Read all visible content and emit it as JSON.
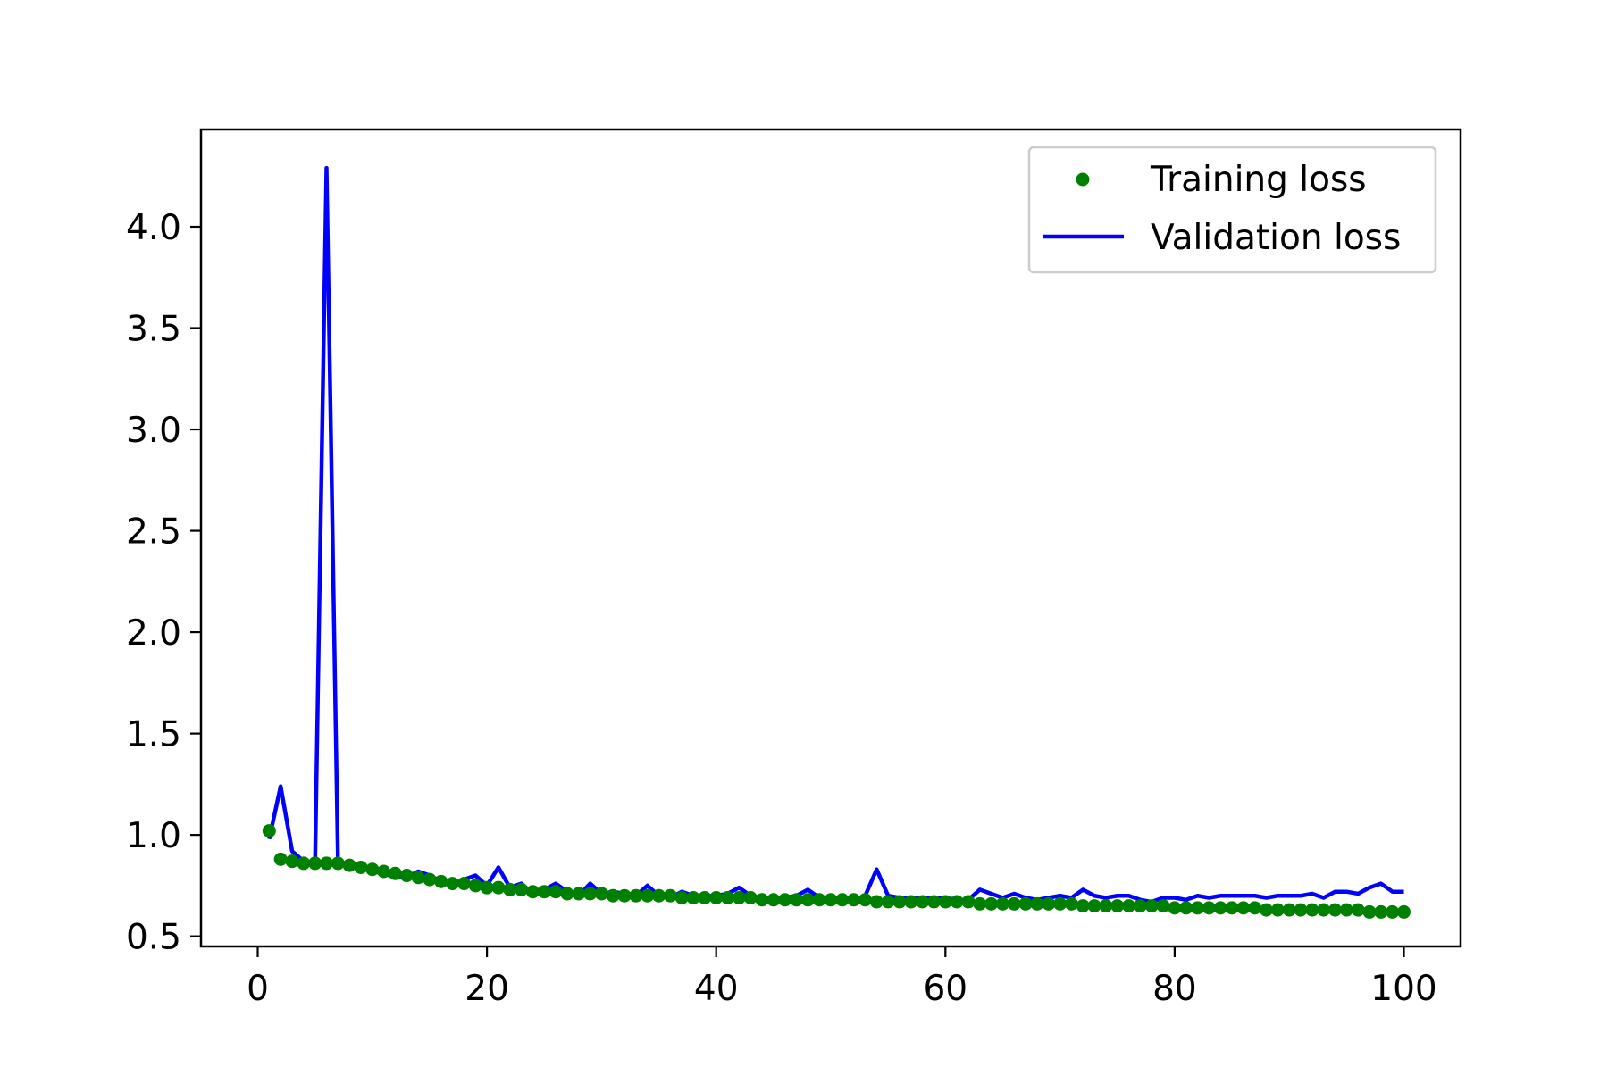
{
  "chart_data": {
    "type": "line",
    "title": "",
    "xlabel": "",
    "ylabel": "",
    "xlim": [
      -4.95,
      104.95
    ],
    "ylim": [
      0.45,
      4.48
    ],
    "xticks": [
      0,
      20,
      40,
      60,
      80,
      100
    ],
    "yticks": [
      0.5,
      1.0,
      1.5,
      2.0,
      2.5,
      3.0,
      3.5,
      4.0
    ],
    "xtick_labels": [
      "0",
      "20",
      "40",
      "60",
      "80",
      "100"
    ],
    "ytick_labels": [
      "0.5",
      "1.0",
      "1.5",
      "2.0",
      "2.5",
      "3.0",
      "3.5",
      "4.0"
    ],
    "grid": false,
    "legend_position": "top-right",
    "x": [
      1,
      2,
      3,
      4,
      5,
      6,
      7,
      8,
      9,
      10,
      11,
      12,
      13,
      14,
      15,
      16,
      17,
      18,
      19,
      20,
      21,
      22,
      23,
      24,
      25,
      26,
      27,
      28,
      29,
      30,
      31,
      32,
      33,
      34,
      35,
      36,
      37,
      38,
      39,
      40,
      41,
      42,
      43,
      44,
      45,
      46,
      47,
      48,
      49,
      50,
      51,
      52,
      53,
      54,
      55,
      56,
      57,
      58,
      59,
      60,
      61,
      62,
      63,
      64,
      65,
      66,
      67,
      68,
      69,
      70,
      71,
      72,
      73,
      74,
      75,
      76,
      77,
      78,
      79,
      80,
      81,
      82,
      83,
      84,
      85,
      86,
      87,
      88,
      89,
      90,
      91,
      92,
      93,
      94,
      95,
      96,
      97,
      98,
      99,
      100
    ],
    "series": [
      {
        "name": "Training loss",
        "style": "markers",
        "color": "#008000",
        "values": [
          1.02,
          0.88,
          0.87,
          0.86,
          0.86,
          0.86,
          0.86,
          0.85,
          0.84,
          0.83,
          0.82,
          0.81,
          0.8,
          0.79,
          0.78,
          0.77,
          0.76,
          0.76,
          0.75,
          0.74,
          0.74,
          0.73,
          0.73,
          0.72,
          0.72,
          0.72,
          0.71,
          0.71,
          0.71,
          0.71,
          0.7,
          0.7,
          0.7,
          0.7,
          0.7,
          0.7,
          0.69,
          0.69,
          0.69,
          0.69,
          0.69,
          0.69,
          0.69,
          0.68,
          0.68,
          0.68,
          0.68,
          0.68,
          0.68,
          0.68,
          0.68,
          0.68,
          0.68,
          0.67,
          0.67,
          0.67,
          0.67,
          0.67,
          0.67,
          0.67,
          0.67,
          0.67,
          0.66,
          0.66,
          0.66,
          0.66,
          0.66,
          0.66,
          0.66,
          0.66,
          0.66,
          0.65,
          0.65,
          0.65,
          0.65,
          0.65,
          0.65,
          0.65,
          0.65,
          0.64,
          0.64,
          0.64,
          0.64,
          0.64,
          0.64,
          0.64,
          0.64,
          0.63,
          0.63,
          0.63,
          0.63,
          0.63,
          0.63,
          0.63,
          0.63,
          0.63,
          0.62,
          0.62,
          0.62,
          0.62
        ]
      },
      {
        "name": "Validation loss",
        "style": "line",
        "color": "#0000ff",
        "values": [
          0.98,
          1.24,
          0.92,
          0.87,
          0.85,
          4.29,
          0.87,
          0.85,
          0.86,
          0.82,
          0.81,
          0.79,
          0.79,
          0.82,
          0.8,
          0.77,
          0.75,
          0.78,
          0.8,
          0.75,
          0.84,
          0.74,
          0.76,
          0.71,
          0.73,
          0.76,
          0.72,
          0.7,
          0.76,
          0.71,
          0.72,
          0.71,
          0.7,
          0.75,
          0.7,
          0.69,
          0.72,
          0.7,
          0.7,
          0.7,
          0.71,
          0.74,
          0.7,
          0.69,
          0.69,
          0.69,
          0.7,
          0.73,
          0.69,
          0.69,
          0.68,
          0.68,
          0.7,
          0.83,
          0.7,
          0.69,
          0.69,
          0.69,
          0.69,
          0.69,
          0.68,
          0.68,
          0.73,
          0.71,
          0.69,
          0.71,
          0.69,
          0.68,
          0.69,
          0.7,
          0.69,
          0.73,
          0.7,
          0.69,
          0.7,
          0.7,
          0.68,
          0.67,
          0.69,
          0.69,
          0.68,
          0.7,
          0.69,
          0.7,
          0.7,
          0.7,
          0.7,
          0.69,
          0.7,
          0.7,
          0.7,
          0.71,
          0.69,
          0.72,
          0.72,
          0.71,
          0.74,
          0.76,
          0.72,
          0.72
        ]
      }
    ]
  }
}
